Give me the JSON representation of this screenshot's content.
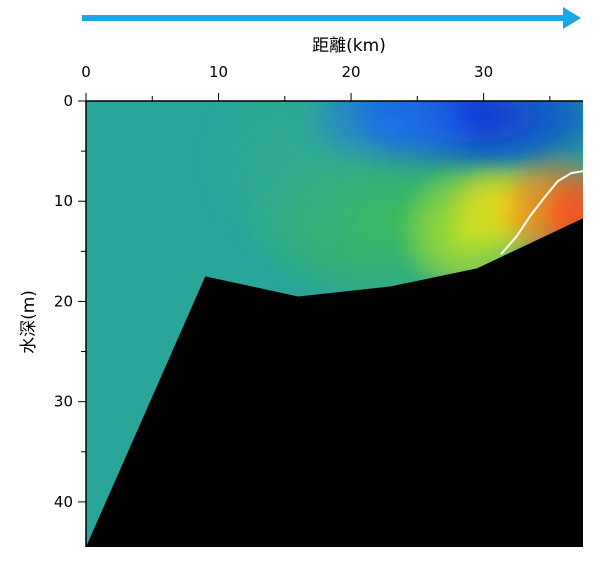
{
  "chart_data": {
    "type": "heatmap",
    "title": "",
    "xlabel": "距離(km)",
    "ylabel": "水深(m)",
    "x_axis_position": "top",
    "y_axis_direction": "downward",
    "xlim": [
      0,
      37.5
    ],
    "ylim": [
      0,
      44.5
    ],
    "x_ticks": [
      0,
      10,
      20,
      30
    ],
    "y_ticks": [
      0,
      10,
      20,
      30,
      40
    ],
    "grid": false,
    "legend": "none",
    "direction_arrow": {
      "from_km": 0,
      "to_km": 37.5,
      "color": "#1aa7e8"
    },
    "color_scale": [
      "#0a2de0",
      "#1e78f0",
      "#26a6b4",
      "#36b08c",
      "#3cc050",
      "#b4e61e",
      "#f5dc14",
      "#f5781e",
      "#ff4a1a"
    ],
    "background_field_color": "#2aa59a",
    "bottom_profile": {
      "color": "#000000",
      "points": [
        [
          0,
          44.5
        ],
        [
          9,
          17.5
        ],
        [
          16,
          19.5
        ],
        [
          23,
          18.5
        ],
        [
          29.5,
          16.7
        ],
        [
          37.5,
          11.7
        ]
      ]
    },
    "contour_line": {
      "color": "#ffffff",
      "points": [
        [
          31.3,
          15.3
        ],
        [
          32.5,
          13.5
        ],
        [
          33.5,
          11.5
        ],
        [
          34.6,
          9.6
        ],
        [
          35.6,
          8.0
        ],
        [
          36.6,
          7.2
        ],
        [
          37.5,
          7.0
        ]
      ]
    },
    "features": [
      {
        "name": "cold-surface-core",
        "x": 29,
        "y": 1.5,
        "sx": 7.5,
        "sy": 4.0,
        "color": "#0a2de0",
        "strength": 0.95
      },
      {
        "name": "mid-surface-blue",
        "x": 23,
        "y": 2.5,
        "sx": 4.5,
        "sy": 3.5,
        "color": "#1e78f0",
        "strength": 0.85
      },
      {
        "name": "green-mid-band",
        "x": 23,
        "y": 12,
        "sx": 7.0,
        "sy": 5.5,
        "color": "#3cc050",
        "strength": 0.8
      },
      {
        "name": "green-upper-band",
        "x": 16,
        "y": 6,
        "sx": 4.5,
        "sy": 6.0,
        "color": "#36b08c",
        "strength": 0.55
      },
      {
        "name": "yellow-front",
        "x": 29,
        "y": 13,
        "sx": 3.5,
        "sy": 4.5,
        "color": "#c8e61e",
        "strength": 0.9
      },
      {
        "name": "warm-front",
        "x": 32,
        "y": 10.5,
        "sx": 3.0,
        "sy": 3.0,
        "color": "#f5dc14",
        "strength": 0.95
      },
      {
        "name": "orange-bottom-core",
        "x": 35.5,
        "y": 11,
        "sx": 2.8,
        "sy": 4.0,
        "color": "#f5781e",
        "strength": 0.95
      },
      {
        "name": "red-bottom-core",
        "x": 37.0,
        "y": 11.5,
        "sx": 1.6,
        "sy": 3.0,
        "color": "#ff4a1a",
        "strength": 0.9
      }
    ]
  }
}
